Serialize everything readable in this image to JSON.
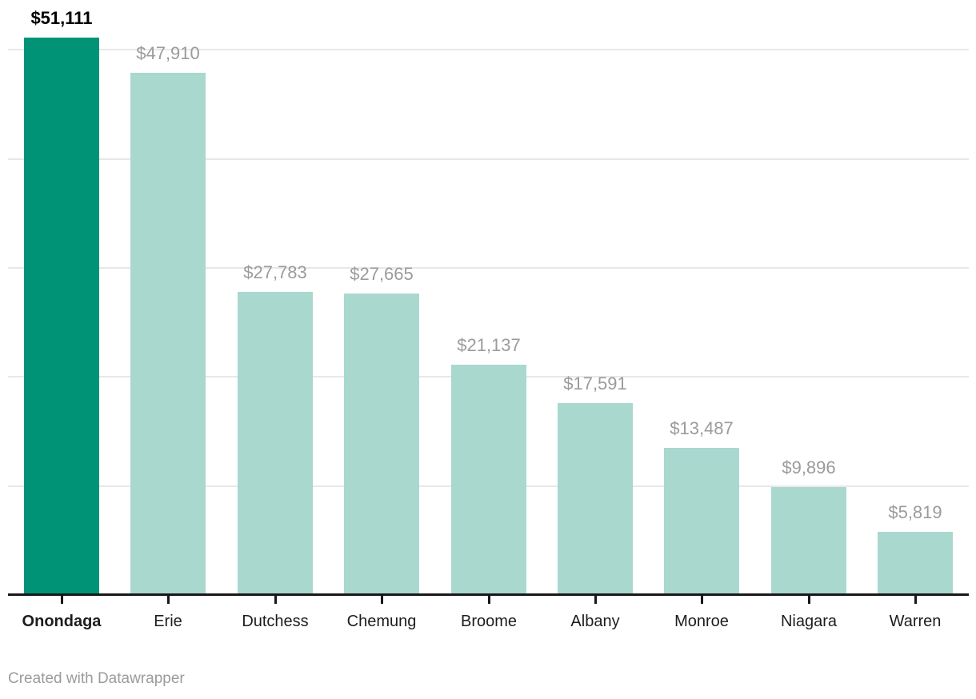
{
  "chart_data": {
    "type": "bar",
    "categories": [
      "Onondaga",
      "Erie",
      "Dutchess",
      "Chemung",
      "Broome",
      "Albany",
      "Monroe",
      "Niagara",
      "Warren"
    ],
    "values": [
      51111,
      47910,
      27783,
      27665,
      21137,
      17591,
      13487,
      9896,
      5819
    ],
    "value_labels": [
      "$51,111",
      "$47,910",
      "$27,783",
      "$27,665",
      "$21,137",
      "$17,591",
      "$13,487",
      "$9,896",
      "$5,819"
    ],
    "highlight_index": 0,
    "title": "",
    "xlabel": "",
    "ylabel": "",
    "ylim": [
      0,
      51111
    ],
    "gridlines": [
      10000,
      20000,
      30000,
      40000,
      50000
    ],
    "grid": true,
    "legend_position": "none",
    "colors": {
      "bar_highlight": "#009376",
      "bar_default": "#a9d8cf",
      "grid": "#e8e8e8",
      "axis": "#18181a",
      "value_label": "#9b9b9b",
      "value_label_highlight": "#000000",
      "category_label": "#1d1d1d",
      "credit": "#9b9b9b"
    }
  },
  "footer": {
    "credit": "Created with Datawrapper"
  }
}
